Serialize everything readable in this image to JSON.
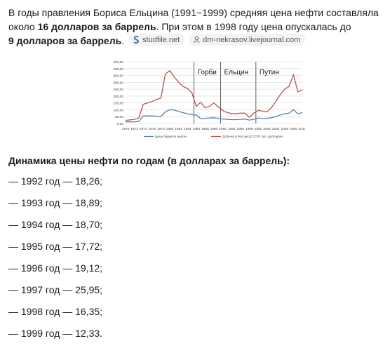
{
  "answer": {
    "p1_a": "В годы правления Бориса Ельцина (1991−1999) средняя цена нефти составляла около ",
    "p1_b": "16 долларов за баррель",
    "p1_c": ". При этом в 1998 году цена опускалась до ",
    "p1_d": "9 долларов за баррель",
    "p1_e": ".",
    "sources": [
      {
        "name": "studfile.net",
        "icon": "studfile-icon"
      },
      {
        "name": "dm-nekrasov.livejournal.com",
        "icon": "user-icon"
      }
    ],
    "subtitle": "Динамика цены нефти по годам (в долларах за баррель):",
    "years": [
      "— 1992 год — 18,26;",
      "— 1993 год — 18,89;",
      "— 1994 год — 18,70;",
      "— 1995 год — 17,72;",
      "— 1996 год — 19,12;",
      "— 1997 год — 25,95;",
      "— 1998 год — 16,35;",
      "— 1999 год — 12,33."
    ]
  },
  "chart_data": {
    "type": "line",
    "ylim": [
      0,
      450
    ],
    "yticks": [
      "0,00",
      "50,00",
      "100,00",
      "150,00",
      "200,00",
      "250,00",
      "300,00",
      "350,00",
      "400,00",
      "450,00"
    ],
    "xticks": [
      "1970",
      "1972",
      "1974",
      "1976",
      "1978",
      "1980",
      "1982",
      "1984",
      "1986",
      "1988",
      "1990",
      "1992",
      "1994",
      "1996",
      "1998",
      "2000",
      "2002",
      "2004",
      "2006",
      "2008",
      "2010"
    ],
    "xlim": [
      1970,
      2010
    ],
    "period_labels": [
      {
        "text": "Горби",
        "year": 1986.3
      },
      {
        "text": "Ельцин",
        "year": 1992.3
      },
      {
        "text": "Путин",
        "year": 2000.3
      }
    ],
    "dividers": [
      1985.5,
      1991.5,
      1999.5
    ],
    "series": [
      {
        "name": "Цена барреля нефти",
        "color": "#5b7fa6",
        "x": [
          1970,
          1972,
          1973,
          1974,
          1976,
          1978,
          1979,
          1980,
          1981,
          1982,
          1984,
          1985,
          1986,
          1987,
          1988,
          1989,
          1990,
          1991,
          1992,
          1993,
          1994,
          1995,
          1996,
          1997,
          1998,
          1999,
          2000,
          2001,
          2002,
          2003,
          2004,
          2005,
          2006,
          2007,
          2008,
          2009,
          2010
        ],
        "values": [
          12,
          12,
          15,
          55,
          55,
          50,
          85,
          100,
          98,
          88,
          70,
          65,
          62,
          35,
          38,
          40,
          42,
          38,
          32,
          30,
          28,
          28,
          30,
          32,
          25,
          30,
          40,
          36,
          38,
          42,
          50,
          62,
          70,
          75,
          100,
          70,
          80
        ]
      },
      {
        "name": "Добыча в России (СССР) трл. долларов",
        "color": "#b85450",
        "x": [
          1970,
          1972,
          1973,
          1974,
          1975,
          1976,
          1977,
          1978,
          1979,
          1980,
          1981,
          1982,
          1983,
          1984,
          1985,
          1986,
          1987,
          1988,
          1989,
          1990,
          1991,
          1992,
          1993,
          1994,
          1995,
          1996,
          1997,
          1998,
          1999,
          2000,
          2001,
          2002,
          2003,
          2004,
          2005,
          2006,
          2007,
          2008,
          2009,
          2010
        ],
        "values": [
          22,
          30,
          40,
          140,
          150,
          160,
          175,
          185,
          360,
          385,
          340,
          300,
          270,
          255,
          225,
          125,
          155,
          115,
          125,
          150,
          120,
          95,
          80,
          72,
          70,
          75,
          75,
          45,
          75,
          95,
          90,
          85,
          115,
          160,
          210,
          250,
          270,
          355,
          230,
          245
        ]
      }
    ]
  }
}
